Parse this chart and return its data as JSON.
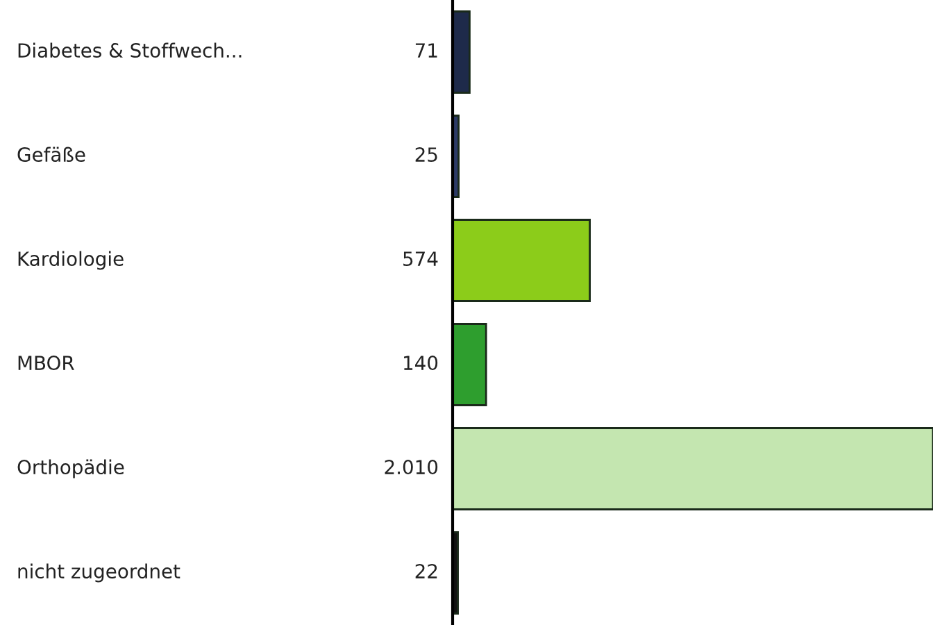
{
  "chart_data": {
    "type": "bar",
    "orientation": "horizontal",
    "categories": [
      "Diabetes & Stoffwech...",
      "Gefäße",
      "Kardiologie",
      "MBOR",
      "Orthopädie",
      "nicht zugeordnet"
    ],
    "values": [
      71,
      25,
      574,
      140,
      2010,
      22
    ],
    "colors": [
      "#1e2a4a",
      "#2c3a66",
      "#8ccc1a",
      "#2e9e2e",
      "#c4e6b0",
      "#111111"
    ],
    "value_labels": [
      "71",
      "25",
      "574",
      "140",
      "2.010",
      "22"
    ]
  }
}
